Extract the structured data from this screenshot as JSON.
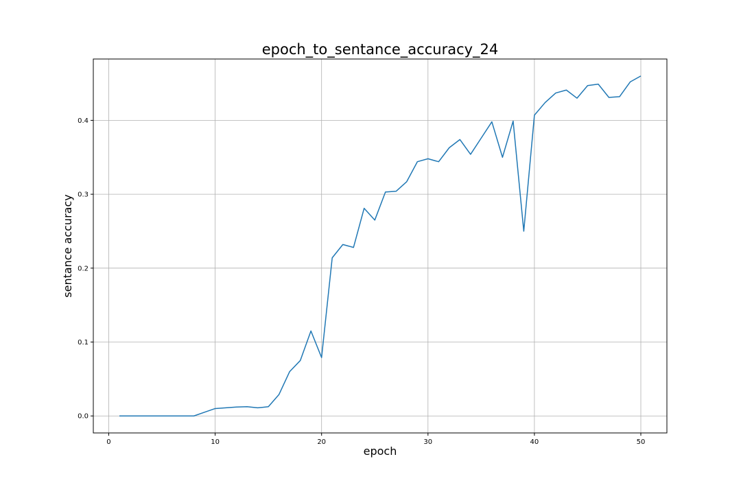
{
  "chart_data": {
    "type": "line",
    "title": "epoch_to_sentance_accuracy_24",
    "xlabel": "epoch",
    "ylabel": "sentance accuracy",
    "xlim": [
      -1.45,
      52.45
    ],
    "ylim": [
      -0.023,
      0.483
    ],
    "xticks": [
      0,
      10,
      20,
      30,
      40,
      50
    ],
    "yticks": [
      0.0,
      0.1,
      0.2,
      0.3,
      0.4
    ],
    "xtick_labels": [
      "0",
      "10",
      "20",
      "30",
      "40",
      "50"
    ],
    "ytick_labels": [
      "0.0",
      "0.1",
      "0.2",
      "0.3",
      "0.4"
    ],
    "grid": true,
    "color": "#1f77b4",
    "series": [
      {
        "x": [
          1,
          2,
          3,
          4,
          5,
          6,
          7,
          8,
          9,
          10,
          11,
          12,
          13,
          14,
          15,
          16,
          17,
          18,
          19,
          20,
          21,
          22,
          23,
          24,
          25,
          26,
          27,
          28,
          29,
          30,
          31,
          32,
          33,
          34,
          35,
          36,
          37,
          38,
          39,
          40,
          41,
          42,
          43,
          44,
          45,
          46,
          47,
          48,
          49,
          50
        ],
        "values": [
          0.0,
          0.0,
          0.0,
          0.0,
          0.0,
          0.0,
          0.0,
          0.0,
          0.005,
          0.01,
          0.011,
          0.012,
          0.0125,
          0.011,
          0.0125,
          0.029,
          0.06,
          0.075,
          0.115,
          0.079,
          0.214,
          0.232,
          0.228,
          0.281,
          0.265,
          0.303,
          0.304,
          0.317,
          0.344,
          0.348,
          0.344,
          0.363,
          0.374,
          0.354,
          0.376,
          0.398,
          0.35,
          0.399,
          0.25,
          0.407,
          0.424,
          0.437,
          0.441,
          0.43,
          0.447,
          0.449,
          0.431,
          0.432,
          0.452,
          0.46
        ]
      }
    ]
  }
}
